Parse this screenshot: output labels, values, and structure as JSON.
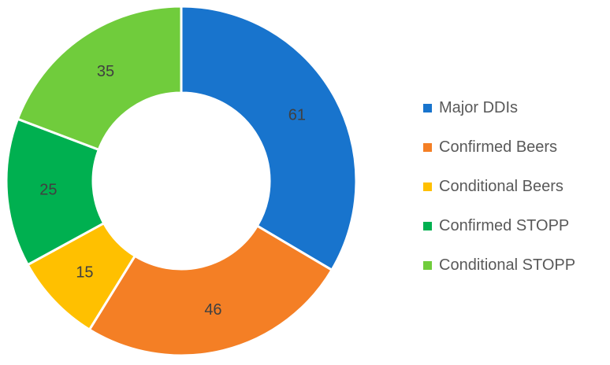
{
  "chart_data": {
    "type": "pie",
    "variant": "donut",
    "title": "",
    "categories": [
      "Major DDIs",
      "Confirmed Beers",
      "Conditional Beers",
      "Confirmed STOPP",
      "Conditional STOPP"
    ],
    "values": [
      61,
      46,
      15,
      25,
      35
    ],
    "colors": [
      "#1874CD",
      "#F47F25",
      "#FFC000",
      "#00B050",
      "#70CC3C"
    ],
    "data_labels": [
      "61",
      "46",
      "15",
      "25",
      "35"
    ],
    "legend_position": "right",
    "start_angle": "top",
    "direction": "clockwise"
  }
}
